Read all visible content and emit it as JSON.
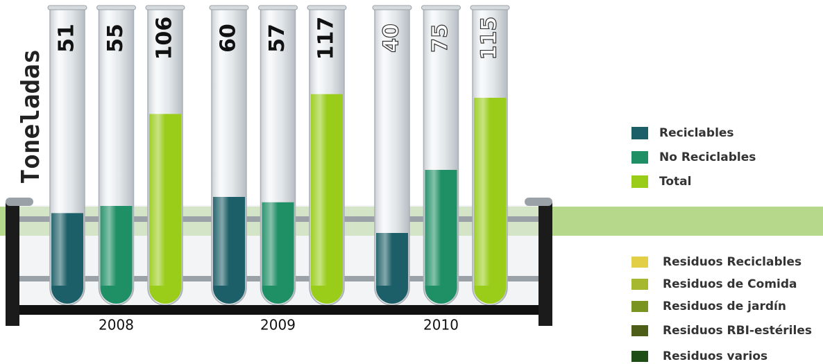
{
  "chart_data": {
    "type": "bar",
    "y_label": "Toneladas",
    "categories": [
      "2008",
      "2009",
      "2010"
    ],
    "series": [
      {
        "name": "Reciclables",
        "color": "#1d5f68",
        "values": [
          51,
          60,
          40
        ]
      },
      {
        "name": "No Reciclables",
        "color": "#1f8f66",
        "values": [
          55,
          57,
          75
        ]
      },
      {
        "name": "Total",
        "color": "#9acd1a",
        "values": [
          106,
          117,
          115
        ]
      }
    ],
    "ylim": [
      0,
      160
    ],
    "second_legend": [
      {
        "name": "Residuos Reciclables",
        "color": "#e2cf45"
      },
      {
        "name": "Residuos de Comida",
        "color": "#a5b830"
      },
      {
        "name": "Residuos de jardín",
        "color": "#7a9422"
      },
      {
        "name": "Residuos RBI-estériles",
        "color": "#4c5e17"
      },
      {
        "name": "Residuos varios",
        "color": "#1e4d16"
      }
    ]
  }
}
